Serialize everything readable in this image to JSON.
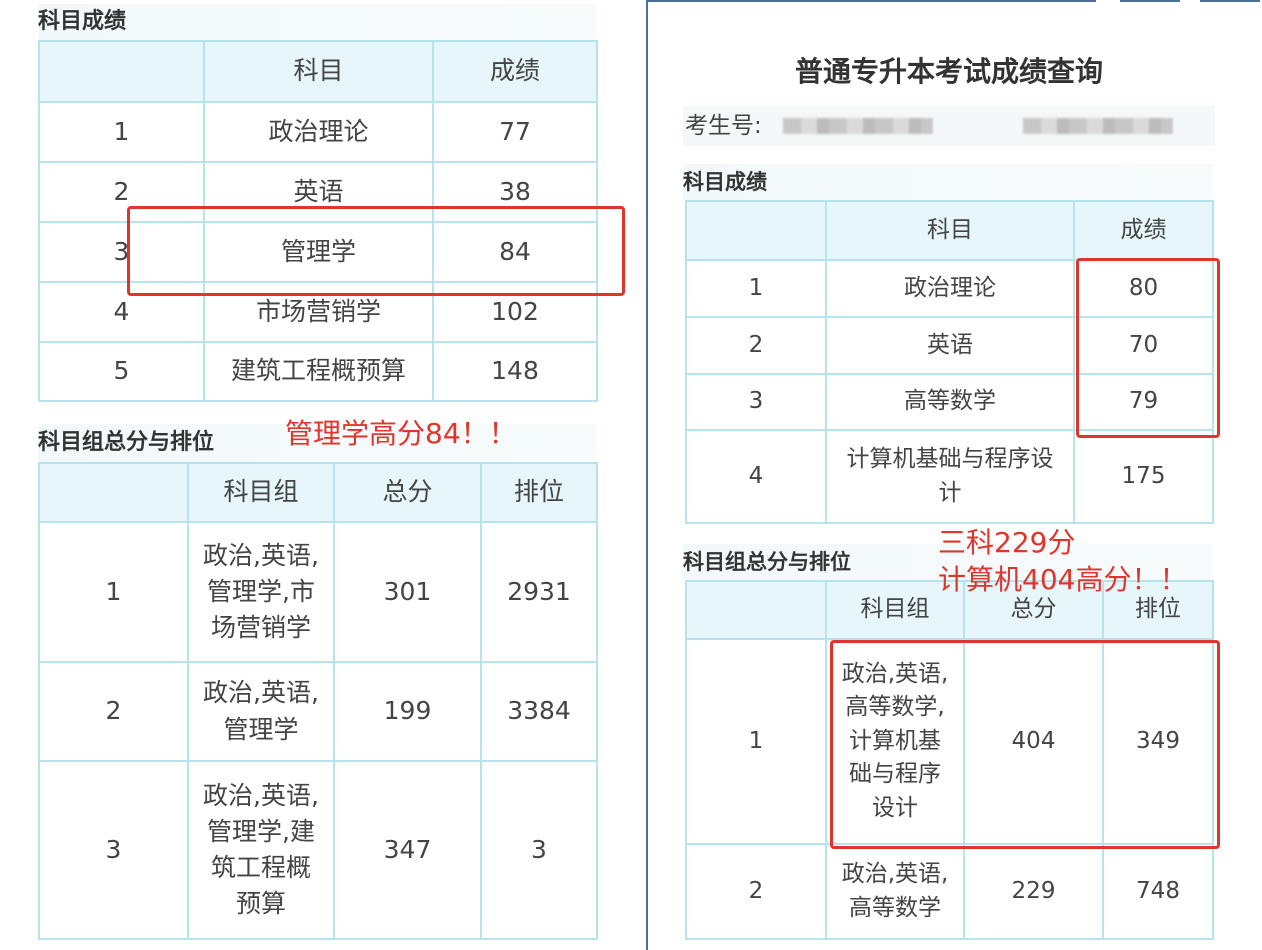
{
  "left": {
    "scores_heading": "科目成绩",
    "scores_table": {
      "headers": [
        "",
        "科目",
        "成绩"
      ],
      "rows": [
        [
          "1",
          "政治理论",
          "77"
        ],
        [
          "2",
          "英语",
          "38"
        ],
        [
          "3",
          "管理学",
          "84"
        ],
        [
          "4",
          "市场营销学",
          "102"
        ],
        [
          "5",
          "建筑工程概预算",
          "148"
        ]
      ]
    },
    "group_heading": "科目组总分与排位",
    "annotation": "管理学高分84！！",
    "group_table": {
      "headers": [
        "",
        "科目组",
        "总分",
        "排位"
      ],
      "rows": [
        [
          "1",
          "政治,英语,\n管理学,市\n场营销学",
          "301",
          "2931"
        ],
        [
          "2",
          "政治,英语,\n管理学",
          "199",
          "3384"
        ],
        [
          "3",
          "政治,英语,\n管理学,建\n筑工程概\n预算",
          "347",
          "3"
        ]
      ]
    }
  },
  "right": {
    "title": "普通专升本考试成绩查询",
    "student_id_label": "考生号:",
    "scores_heading": "科目成绩",
    "scores_table": {
      "headers": [
        "",
        "科目",
        "成绩"
      ],
      "rows": [
        [
          "1",
          "政治理论",
          "80"
        ],
        [
          "2",
          "英语",
          "70"
        ],
        [
          "3",
          "高等数学",
          "79"
        ],
        [
          "4",
          "计算机基础与程序设\n计",
          "175"
        ]
      ]
    },
    "group_heading": "科目组总分与排位",
    "annotation_line1": "三科229分",
    "annotation_line2": "计算机404高分！！",
    "group_table": {
      "headers": [
        "",
        "科目组",
        "总分",
        "排位"
      ],
      "rows": [
        [
          "1",
          "政治,英语,\n高等数学,\n计算机基\n础与程序\n设计",
          "404",
          "349"
        ],
        [
          "2",
          "政治,英语,\n高等数学",
          "229",
          "748"
        ]
      ]
    }
  },
  "colors": {
    "annotation": "#e0352b",
    "table_border": "#b5e3ee",
    "header_bg": "#e6f6fb",
    "frame": "#4b6f9a"
  }
}
